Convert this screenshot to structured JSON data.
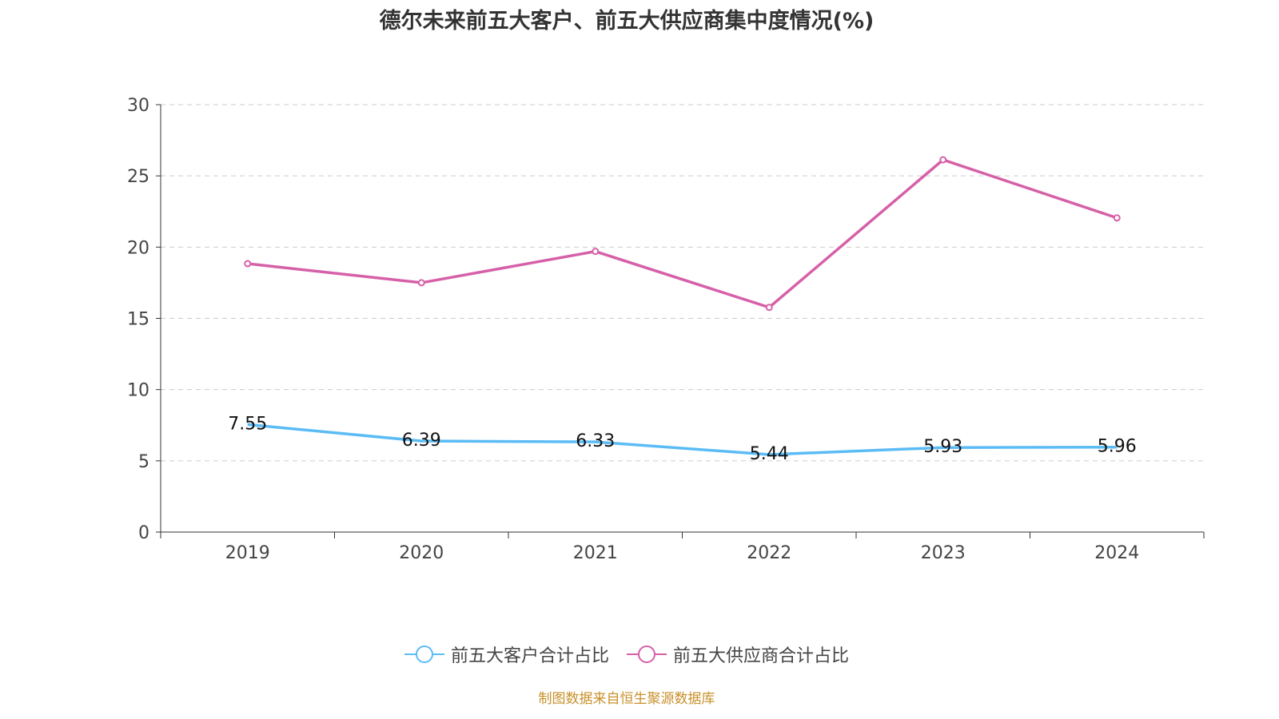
{
  "chart_data": {
    "type": "line",
    "title": "德尔未来前五大客户、前五大供应商集中度情况(%)",
    "categories": [
      "2019",
      "2020",
      "2021",
      "2022",
      "2023",
      "2024"
    ],
    "series": [
      {
        "name": "前五大客户合计占比",
        "color": "#5bbcf5",
        "values": [
          7.55,
          6.39,
          6.33,
          5.44,
          5.93,
          5.96
        ],
        "labels": [
          "7.55",
          "6.39",
          "6.33",
          "5.44",
          "5.93",
          "5.96"
        ]
      },
      {
        "name": "前五大供应商合计占比",
        "color": "#d660a8",
        "values": [
          18.84,
          17.5,
          19.7,
          15.77,
          26.13,
          22.05
        ]
      }
    ],
    "yticks": [
      "0",
      "5",
      "10",
      "15",
      "20",
      "25",
      "30"
    ],
    "ylim": [
      0,
      30
    ],
    "grid": true,
    "legend_position": "bottom"
  },
  "source": "制图数据来自恒生聚源数据库"
}
